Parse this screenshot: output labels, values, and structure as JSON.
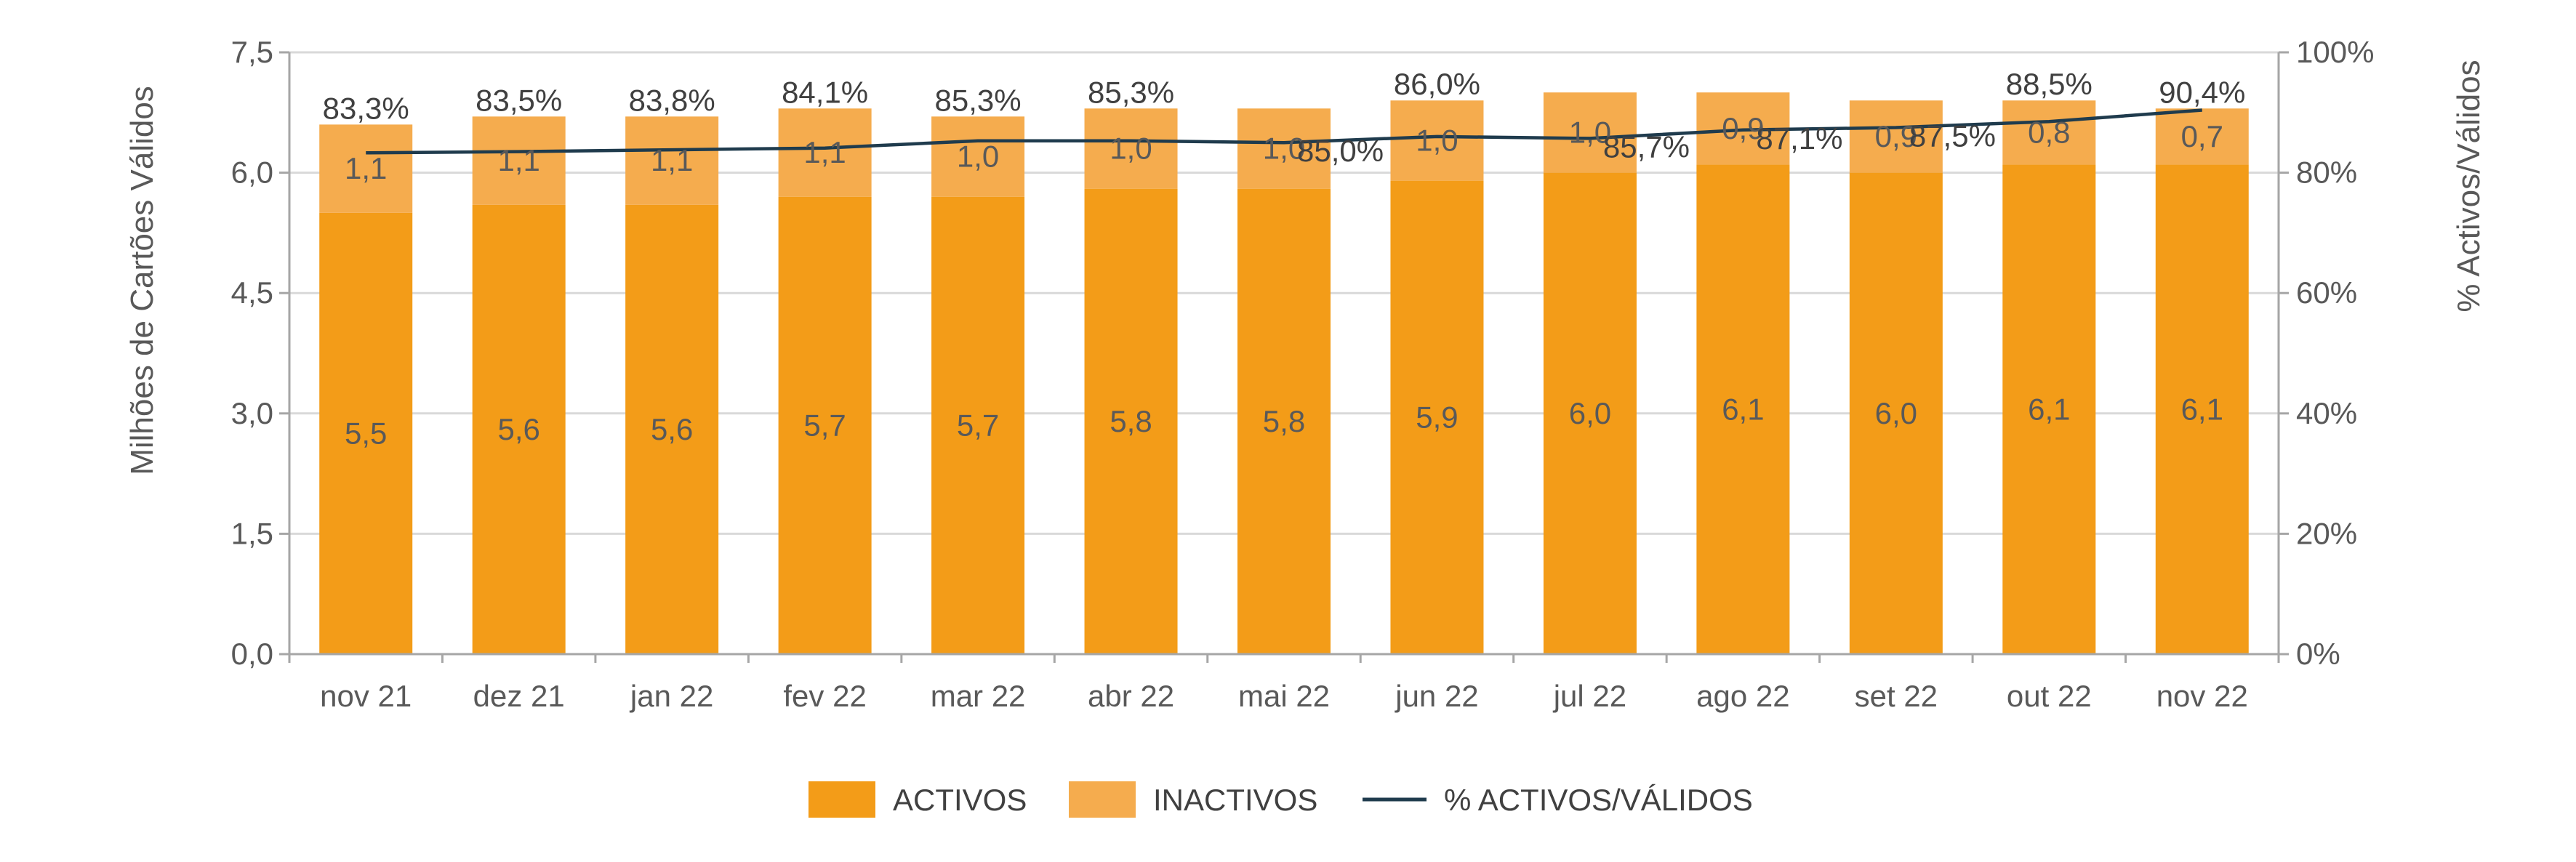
{
  "chart_data": {
    "type": "bar",
    "stacked": true,
    "categories": [
      "nov 21",
      "dez 21",
      "jan 22",
      "fev 22",
      "mar 22",
      "abr 22",
      "mai 22",
      "jun 22",
      "jul 22",
      "ago 22",
      "set 22",
      "out 22",
      "nov 22"
    ],
    "series": [
      {
        "name": "ACTIVOS",
        "type": "bar",
        "axis": "left",
        "color": "#F39C18",
        "values": [
          5.5,
          5.6,
          5.6,
          5.7,
          5.7,
          5.8,
          5.8,
          5.9,
          6.0,
          6.1,
          6.0,
          6.1,
          6.1
        ],
        "labels": [
          "5,5",
          "5,6",
          "5,6",
          "5,7",
          "5,7",
          "5,8",
          "5,8",
          "5,9",
          "6,0",
          "6,1",
          "6,0",
          "6,1",
          "6,1"
        ]
      },
      {
        "name": "INACTIVOS",
        "type": "bar",
        "axis": "left",
        "color": "#F5AC4E",
        "values": [
          1.1,
          1.1,
          1.1,
          1.1,
          1.0,
          1.0,
          1.0,
          1.0,
          1.0,
          0.9,
          0.9,
          0.8,
          0.7
        ],
        "labels": [
          "1,1",
          "1,1",
          "1,1",
          "1,1",
          "1,0",
          "1,0",
          "1,0",
          "1,0",
          "1,0",
          "0,9",
          "0,9",
          "0,8",
          "0,7"
        ]
      },
      {
        "name": "% ACTIVOS/VÁLIDOS",
        "type": "line",
        "axis": "right",
        "color": "#1F3B4D",
        "values": [
          83.3,
          83.5,
          83.8,
          84.1,
          85.3,
          85.3,
          85.0,
          86.0,
          85.7,
          87.1,
          87.5,
          88.5,
          90.4
        ],
        "labels": [
          "83,3%",
          "83,5%",
          "83,8%",
          "84,1%",
          "85,3%",
          "85,3%",
          "85,0%",
          "86,0%",
          "85,7%",
          "87,1%",
          "87,5%",
          "88,5%",
          "90,4%"
        ]
      }
    ],
    "ylabel": "Milhões de Cartões Válidos",
    "ylabel_right": "% Activos/Válidos",
    "ylim": [
      0,
      7.5
    ],
    "ylim_right": [
      0,
      100
    ],
    "yticks": [
      "0,0",
      "1,5",
      "3,0",
      "4,5",
      "6,0",
      "7,5"
    ],
    "yticks_right": [
      "0%",
      "20%",
      "40%",
      "60%",
      "80%",
      "100%"
    ],
    "grid": true,
    "legend_position": "bottom"
  }
}
